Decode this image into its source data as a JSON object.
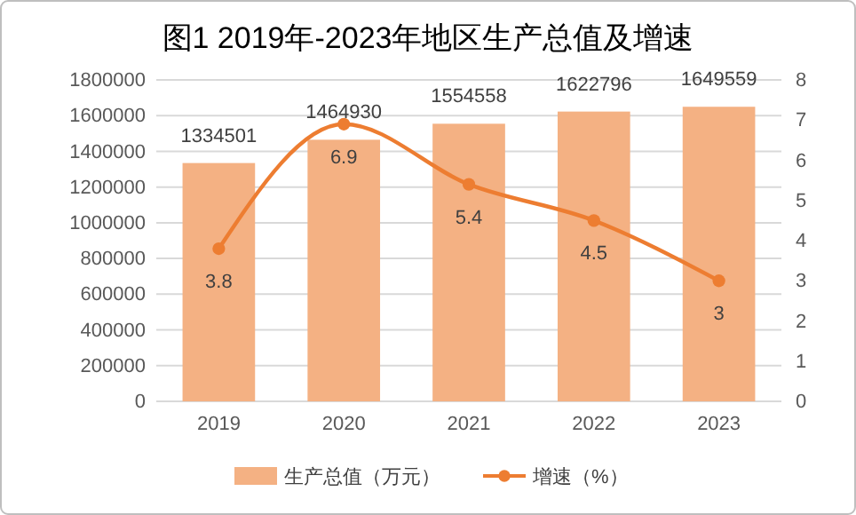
{
  "chart_data": {
    "type": "bar",
    "title": "图1 2019年-2023年地区生产总值及增速",
    "categories": [
      "2019",
      "2020",
      "2021",
      "2022",
      "2023"
    ],
    "series": [
      {
        "name": "生产总值（万元）",
        "color": "#f4b183",
        "values": [
          1334501,
          1464930,
          1554558,
          1622796,
          1649559
        ]
      },
      {
        "name": "增速（%）",
        "type": "line",
        "axis": "y2",
        "color": "#ed7d31",
        "values": [
          3.8,
          6.9,
          5.4,
          4.5,
          3
        ]
      }
    ],
    "ylim": [
      0,
      1800000
    ],
    "yticks": [
      0,
      200000,
      400000,
      600000,
      800000,
      1000000,
      1200000,
      1400000,
      1600000,
      1800000
    ],
    "y2lim": [
      0,
      8
    ],
    "y2ticks": [
      0,
      1,
      2,
      3,
      4,
      5,
      6,
      7,
      8
    ],
    "grid": "y",
    "legend": "bottom",
    "marker": "circle",
    "line_style": "solid",
    "data_labels": true
  }
}
